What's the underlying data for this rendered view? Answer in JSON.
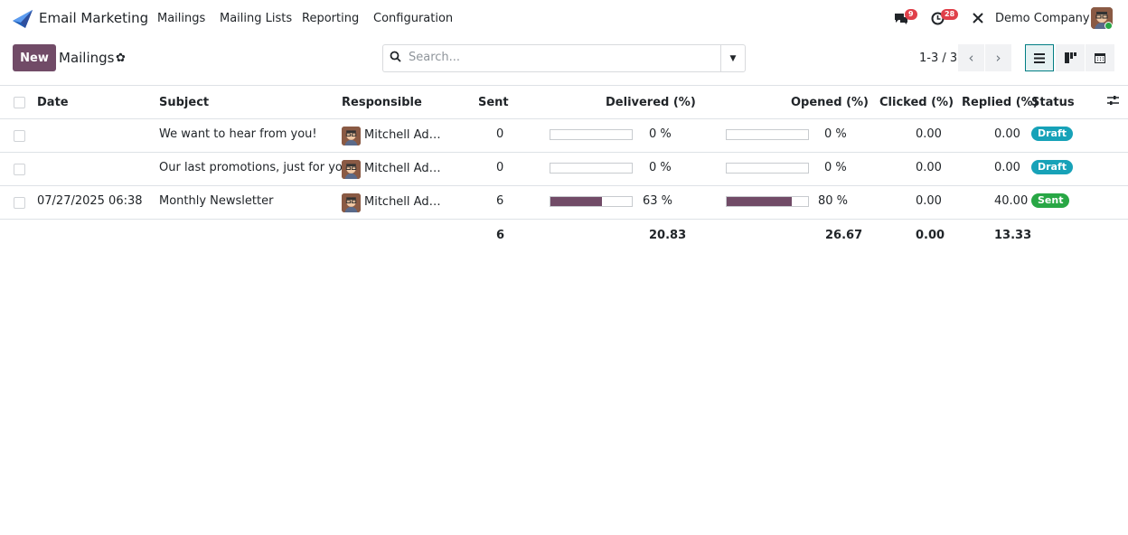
{
  "app": {
    "name": "Email Marketing",
    "menu": [
      "Mailings",
      "Mailing Lists",
      "Reporting",
      "Configuration"
    ]
  },
  "systray": {
    "messages_count": "9",
    "activities_count": "28",
    "company": "Demo Company"
  },
  "control": {
    "new_label": "New",
    "breadcrumb": "Mailings",
    "search_placeholder": "Search...",
    "pager": "1-3 / 3"
  },
  "table": {
    "headers": {
      "date": "Date",
      "subject": "Subject",
      "responsible": "Responsible",
      "sent": "Sent",
      "delivered": "Delivered (%)",
      "opened": "Opened (%)",
      "clicked": "Clicked (%)",
      "replied": "Replied (%)",
      "status": "Status"
    },
    "rows": [
      {
        "date": "",
        "subject": "We want to hear from you!",
        "responsible": "Mitchell Ad…",
        "sent": "0",
        "delivered_pct": 0,
        "delivered_label": "0 %",
        "opened_pct": 0,
        "opened_label": "0 %",
        "clicked": "0.00",
        "replied": "0.00",
        "status": "Draft"
      },
      {
        "date": "",
        "subject": "Our last promotions, just for you!",
        "responsible": "Mitchell Ad…",
        "sent": "0",
        "delivered_pct": 0,
        "delivered_label": "0 %",
        "opened_pct": 0,
        "opened_label": "0 %",
        "clicked": "0.00",
        "replied": "0.00",
        "status": "Draft"
      },
      {
        "date": "07/27/2025 06:38",
        "subject": "Monthly Newsletter",
        "responsible": "Mitchell Ad…",
        "sent": "6",
        "delivered_pct": 63,
        "delivered_label": "63 %",
        "opened_pct": 80,
        "opened_label": "80 %",
        "clicked": "0.00",
        "replied": "40.00",
        "status": "Sent"
      }
    ],
    "totals": {
      "sent": "6",
      "delivered": "20.83",
      "opened": "26.67",
      "clicked": "0.00",
      "replied": "13.33"
    }
  },
  "colors": {
    "primary": "#714b67",
    "draft": "#17a2b8",
    "sent": "#28a745",
    "badge": "#e0404a"
  }
}
